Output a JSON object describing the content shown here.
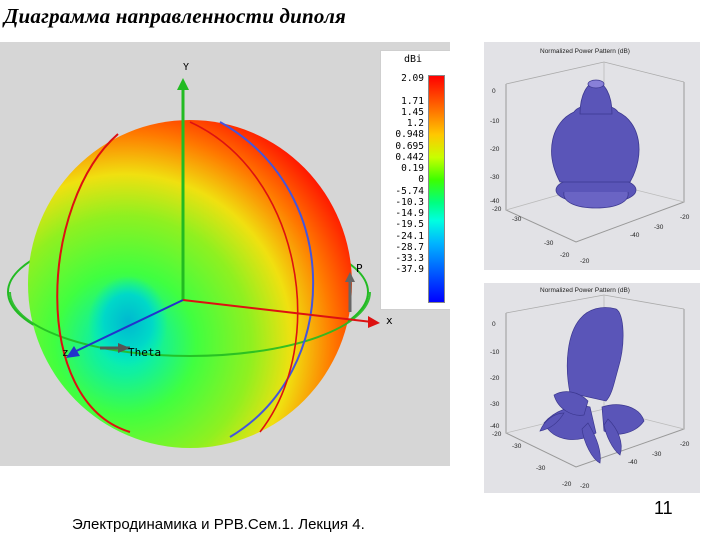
{
  "slide": {
    "title": "Диаграмма направленности диполя",
    "footer": "Электродинамика и РРВ.Сем.1. Лекция 4.",
    "page_number": "11"
  },
  "main_plot": {
    "axis_labels": {
      "y": "Y",
      "x": "x",
      "z": "z",
      "theta": "Theta",
      "phi": "P"
    },
    "legend": {
      "unit": "dBi",
      "values": [
        "2.09",
        "",
        "1.71",
        "1.45",
        "1.2",
        "0.948",
        "0.695",
        "0.442",
        "0.19",
        "0",
        "-5.74",
        "-10.3",
        "-14.9",
        "-19.5",
        "-24.1",
        "-28.7",
        "-33.3",
        "-37.9"
      ]
    },
    "colors": {
      "max": "#ff0000",
      "mid": "#3cff00",
      "min": "#0000ff",
      "axis_green": "#22bb22",
      "axis_red": "#dd1111",
      "axis_blue": "#2233cc"
    }
  },
  "pattern_plots": [
    {
      "title": "Normalized Power Pattern (dB)",
      "z_ticks": [
        "0",
        "-10",
        "-20",
        "-30",
        "-40"
      ],
      "x_ticks": [
        "-20",
        "-30",
        "-20"
      ],
      "y_ticks": [
        "-20",
        "-30",
        "-40",
        "-30",
        "-20"
      ],
      "color": "#5a55b8"
    },
    {
      "title": "Normalized Power Pattern (dB)",
      "z_ticks": [
        "0",
        "-10",
        "-20",
        "-30",
        "-40"
      ],
      "x_ticks": [
        "-20",
        "-30",
        "-20"
      ],
      "y_ticks": [
        "-20",
        "-30",
        "-40",
        "-30",
        "-20"
      ],
      "color": "#5a55b8"
    }
  ]
}
